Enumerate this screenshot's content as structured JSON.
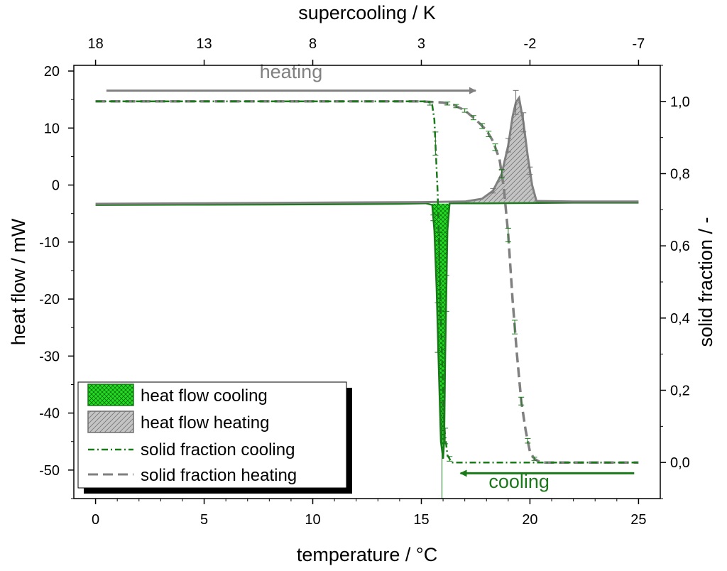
{
  "chart_data": {
    "type": "line",
    "title": "",
    "xlabel": "temperature / °C",
    "x2label": "supercooling / K",
    "ylabel": "heat flow / mW",
    "y2label": "solid fraction / -",
    "xlim": [
      -1,
      26
    ],
    "ylim": [
      -55,
      21
    ],
    "y2lim": [
      -0.1,
      1.1
    ],
    "xticks": [
      0,
      5,
      10,
      15,
      20,
      25
    ],
    "xtick_labels": [
      "0",
      "5",
      "10",
      "15",
      "20",
      "25"
    ],
    "x2ticks": [
      18,
      13,
      8,
      3,
      -2,
      -7
    ],
    "x2tick_labels": [
      "18",
      "13",
      "8",
      "3",
      "-2",
      "-7"
    ],
    "yticks": [
      20,
      10,
      0,
      -10,
      -20,
      -30,
      -40,
      -50
    ],
    "ytick_labels": [
      "20",
      "10",
      "0",
      "-10",
      "-20",
      "-30",
      "-40",
      "-50"
    ],
    "y2ticks": [
      1.0,
      0.8,
      0.6,
      0.4,
      0.2,
      0.0
    ],
    "y2tick_labels": [
      "1,0",
      "0,8",
      "0,6",
      "0,4",
      "0,2",
      "0,0"
    ],
    "colors": {
      "cooling": "#1a7a1a",
      "cooling_fill": "#22dd22",
      "heating": "#808080",
      "heating_fill": "#c4c4c4"
    },
    "series": [
      {
        "name": "heat flow cooling",
        "axis": "left",
        "style": "filled",
        "x": [
          0,
          5,
          10,
          14,
          15.2,
          15.5,
          15.6,
          15.7,
          15.8,
          15.9,
          16.0,
          16.05,
          16.1,
          16.2,
          16.3,
          18,
          22,
          25
        ],
        "y": [
          -3.5,
          -3.45,
          -3.4,
          -3.3,
          -3.2,
          -3.5,
          -8,
          -18,
          -32,
          -45,
          -48,
          -45,
          -30,
          -8,
          -3.2,
          -3.2,
          -3.1,
          -3.1
        ]
      },
      {
        "name": "heat flow heating",
        "axis": "left",
        "style": "filled",
        "x": [
          0,
          5,
          10,
          15,
          17,
          17.8,
          18.3,
          18.7,
          19.0,
          19.2,
          19.35,
          19.5,
          19.7,
          19.9,
          20.1,
          20.3,
          22,
          25
        ],
        "y": [
          -3.3,
          -3.2,
          -3.1,
          -3.0,
          -2.9,
          -2.4,
          -1.0,
          2.0,
          7.0,
          12.0,
          14.5,
          15.3,
          11.0,
          5.0,
          0.0,
          -2.8,
          -2.9,
          -2.9
        ]
      },
      {
        "name": "solid fraction cooling",
        "axis": "right",
        "style": "dashdot",
        "x": [
          0,
          5,
          10,
          15,
          15.3,
          15.5,
          15.6,
          15.75,
          15.9,
          16.05,
          16.2,
          16.4,
          20,
          25
        ],
        "y": [
          1.0,
          1.0,
          1.0,
          1.0,
          1.0,
          0.99,
          0.95,
          0.75,
          0.4,
          0.1,
          0.02,
          0.0,
          0.0,
          0.0
        ]
      },
      {
        "name": "solid fraction heating",
        "axis": "right",
        "style": "dashed",
        "x": [
          0,
          5,
          10,
          15,
          16,
          16.5,
          17,
          17.5,
          18,
          18.3,
          18.6,
          18.8,
          19.0,
          19.2,
          19.4,
          19.6,
          19.8,
          20.0,
          20.2,
          20.5,
          21,
          25
        ],
        "y": [
          1.0,
          1.0,
          1.0,
          1.0,
          0.997,
          0.99,
          0.975,
          0.95,
          0.92,
          0.89,
          0.84,
          0.76,
          0.63,
          0.45,
          0.3,
          0.17,
          0.09,
          0.03,
          0.01,
          0.0,
          0.0,
          0.0
        ]
      }
    ],
    "annotations": [
      {
        "text": "heating",
        "x": 9,
        "y_axis": "right",
        "y": 1.065,
        "arrow_from": 0.5,
        "arrow_to": 17.5,
        "arrow_y": 1.03,
        "color": "#808080"
      },
      {
        "text": "cooling",
        "x": 19.5,
        "y_axis": "right",
        "y": -0.07,
        "arrow_from": 24.8,
        "arrow_to": 16.8,
        "arrow_y": -0.03,
        "color": "#1a7a1a"
      }
    ],
    "legend": {
      "location": "bottom-left",
      "entries": [
        "heat flow cooling",
        "heat flow heating",
        "solid fraction cooling",
        "solid fraction heating"
      ]
    }
  }
}
